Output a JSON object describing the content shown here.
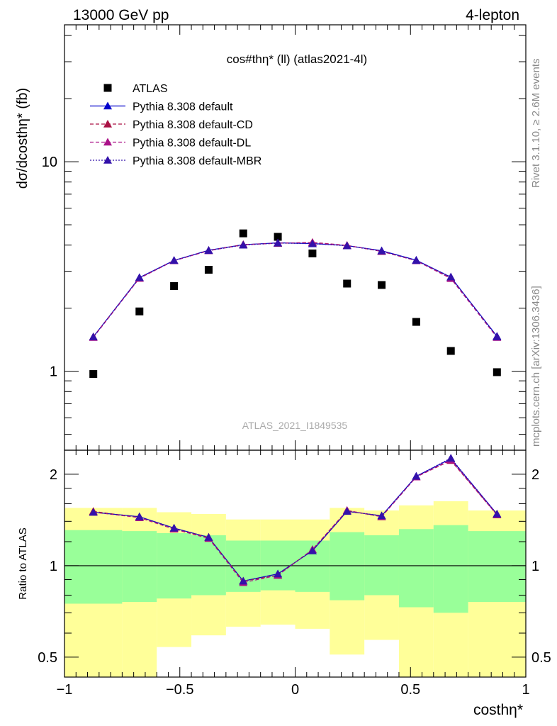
{
  "header": {
    "energy_label": "13000 GeV pp",
    "process_label": "4-lepton"
  },
  "side_labels": {
    "rivet": "Rivet 3.1.10, ≥ 2.6M events",
    "mcplots": "mcplots.cern.ch [arXiv:1306.3436]"
  },
  "chart_data": [
    {
      "type": "scatter",
      "title": "cos#thη* (ll) (atlas2021-4l)",
      "ylabel": "dσ/dcosthη* (fb)",
      "watermark": "ATLAS_2021_I1849535",
      "xlim": [
        -1,
        1
      ],
      "ylim": [
        0.42,
        45
      ],
      "y_scale": "log",
      "y_tick_labels": [
        "1",
        "10"
      ],
      "legend_placement": "top-left",
      "x": [
        -0.875,
        -0.675,
        -0.525,
        -0.375,
        -0.225,
        -0.075,
        0.075,
        0.225,
        0.375,
        0.525,
        0.675,
        0.875
      ],
      "x_bin_edges": [
        -1,
        -0.75,
        -0.6,
        -0.45,
        -0.3,
        -0.15,
        0,
        0.15,
        0.3,
        0.45,
        0.6,
        0.75,
        1
      ],
      "series": [
        {
          "name": "ATLAS",
          "color": "#000000",
          "marker": "square",
          "values": [
            0.97,
            1.93,
            2.55,
            3.05,
            4.55,
            4.38,
            3.65,
            2.62,
            2.58,
            1.72,
            1.25,
            0.99
          ]
        },
        {
          "name": "Pythia 8.308 default",
          "color": "#0000cc",
          "marker": "triangle",
          "line": "solid",
          "values": [
            1.46,
            2.8,
            3.38,
            3.78,
            4.02,
            4.1,
            4.07,
            3.98,
            3.76,
            3.39,
            2.81,
            1.47
          ]
        },
        {
          "name": "Pythia 8.308 default-CD",
          "color": "#aa1144",
          "marker": "triangle",
          "line": "dashed",
          "values": [
            1.46,
            2.78,
            3.37,
            3.77,
            4.02,
            4.08,
            4.12,
            3.99,
            3.73,
            3.37,
            2.78,
            1.46
          ]
        },
        {
          "name": "Pythia 8.308 default-DL",
          "color": "#aa1188",
          "marker": "triangle",
          "line": "dashed",
          "values": [
            1.45,
            2.78,
            3.37,
            3.76,
            4.01,
            4.09,
            4.11,
            3.98,
            3.74,
            3.37,
            2.77,
            1.45
          ]
        },
        {
          "name": "Pythia 8.308 default-MBR",
          "color": "#3311aa",
          "marker": "triangle",
          "line": "dotted",
          "values": [
            1.46,
            2.8,
            3.38,
            3.77,
            4.0,
            4.09,
            4.06,
            3.97,
            3.75,
            3.38,
            2.82,
            1.46
          ]
        }
      ]
    },
    {
      "type": "line",
      "ylabel": "Ratio to ATLAS",
      "xlabel": "costhη*",
      "xlim": [
        -1,
        1
      ],
      "ylim": [
        0.43,
        2.4
      ],
      "y_scale": "log",
      "x_tick_labels": [
        "−1",
        "−0.5",
        "0",
        "0.5",
        "1"
      ],
      "y_tick_labels": [
        "0.5",
        "1",
        "2"
      ],
      "reference_line": 1,
      "x": [
        -0.875,
        -0.675,
        -0.525,
        -0.375,
        -0.225,
        -0.075,
        0.075,
        0.225,
        0.375,
        0.525,
        0.675,
        0.875
      ],
      "x_bin_edges": [
        -1,
        -0.75,
        -0.6,
        -0.45,
        -0.3,
        -0.15,
        0,
        0.15,
        0.3,
        0.45,
        0.6,
        0.75,
        1
      ],
      "uncertainty_bands": {
        "inner_color": "#99ff99",
        "outer_color": "#ffff99",
        "inner_low": [
          0.75,
          0.76,
          0.78,
          0.8,
          0.82,
          0.83,
          0.82,
          0.77,
          0.8,
          0.73,
          0.7,
          0.76
        ],
        "inner_high": [
          1.31,
          1.3,
          1.28,
          1.26,
          1.21,
          1.21,
          1.21,
          1.29,
          1.26,
          1.32,
          1.36,
          1.3
        ],
        "outer_low": [
          0.37,
          0.42,
          0.54,
          0.59,
          0.63,
          0.64,
          0.62,
          0.51,
          0.57,
          0.4,
          0.4,
          0.41
        ],
        "outer_high": [
          1.55,
          1.55,
          1.5,
          1.48,
          1.42,
          1.42,
          1.42,
          1.55,
          1.52,
          1.58,
          1.63,
          1.52
        ]
      },
      "series": [
        {
          "name": "Pythia 8.308 default",
          "color": "#0000cc",
          "line": "solid",
          "values": [
            1.5,
            1.45,
            1.33,
            1.24,
            0.89,
            0.94,
            1.12,
            1.51,
            1.46,
            1.97,
            2.25,
            1.48
          ]
        },
        {
          "name": "Pythia 8.308 default-CD",
          "color": "#aa1144",
          "line": "dashed",
          "values": [
            1.51,
            1.44,
            1.32,
            1.24,
            0.89,
            0.93,
            1.13,
            1.52,
            1.45,
            1.96,
            2.22,
            1.47
          ]
        },
        {
          "name": "Pythia 8.308 default-DL",
          "color": "#aa1188",
          "line": "dashed",
          "values": [
            1.5,
            1.44,
            1.32,
            1.23,
            0.88,
            0.93,
            1.13,
            1.52,
            1.45,
            1.96,
            2.23,
            1.47
          ]
        },
        {
          "name": "Pythia 8.308 default-MBR",
          "color": "#3311aa",
          "line": "dotted",
          "values": [
            1.5,
            1.45,
            1.33,
            1.24,
            0.89,
            0.94,
            1.12,
            1.51,
            1.46,
            1.97,
            2.26,
            1.48
          ]
        }
      ]
    }
  ]
}
